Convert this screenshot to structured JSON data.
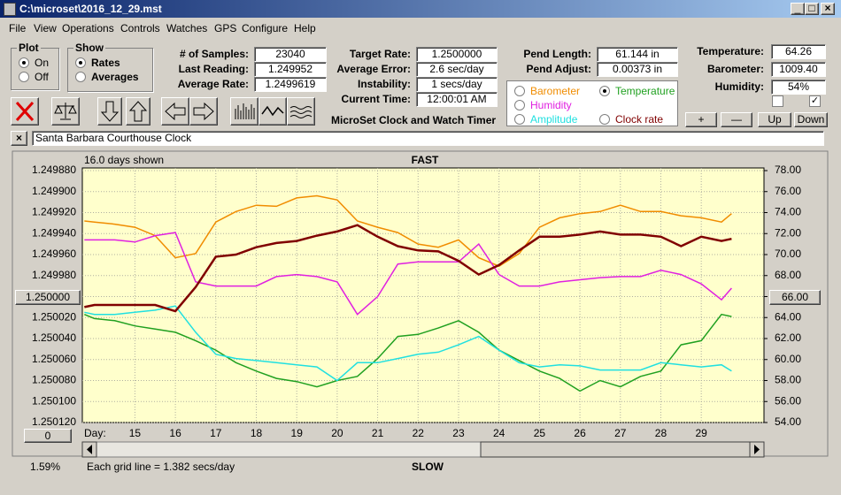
{
  "window": {
    "title": "C:\\microset\\2016_12_29.mst",
    "menu": [
      "File",
      "View",
      "Operations",
      "Controls",
      "Watches",
      "GPS",
      "Configure",
      "Help"
    ]
  },
  "controls": {
    "plot": {
      "title": "Plot",
      "options": [
        "On",
        "Off"
      ]
    },
    "show": {
      "title": "Show",
      "options": [
        "Rates",
        "Averages"
      ]
    },
    "fields": [
      {
        "label": "# of Samples:",
        "value": "23040"
      },
      {
        "label": "Last Reading:",
        "value": "1.249952"
      },
      {
        "label": "Average Rate:",
        "value": "1.2499619"
      },
      {
        "label": "Target Rate:",
        "value": "1.2500000"
      },
      {
        "label": "Average Error:",
        "value": "2.6 sec/day"
      },
      {
        "label": "Instability:",
        "value": "1 secs/day"
      },
      {
        "label": "Current Time:",
        "value": "12:00:01 AM"
      },
      {
        "label": "Pend Length:",
        "value": "61.144 in"
      },
      {
        "label": "Pend Adjust:",
        "value": "0.00373 in"
      },
      {
        "label": "Temperature:",
        "value": "64.26"
      },
      {
        "label": "Barometer:",
        "value": "1009.40"
      },
      {
        "label": "Humidity:",
        "value": "54%"
      }
    ],
    "app_title": "MicroSet Clock and Watch Timer",
    "buttons": [
      "+",
      "—",
      "Up",
      "Down"
    ],
    "description": "Santa Barbara Courthouse Clock"
  },
  "chart_data": {
    "type": "line",
    "days_shown": "16.0 days shown",
    "top_label": "FAST",
    "bottom_label": "SLOW",
    "x_label": "Day:",
    "grid_note": "Each grid line = 1.382 secs/day",
    "status": "1.59%",
    "zero_button": "0",
    "x": [
      13.75,
      14,
      14.5,
      15,
      15.5,
      16,
      16.5,
      17,
      17.5,
      18,
      18.5,
      19,
      19.5,
      20,
      20.5,
      21,
      21.5,
      22,
      22.5,
      23,
      23.5,
      24,
      24.5,
      25,
      25.5,
      26,
      26.5,
      27,
      27.5,
      28,
      28.5,
      29,
      29.5,
      29.75
    ],
    "xlim": [
      13.7,
      30.55
    ],
    "xticks": [
      15,
      16,
      17,
      18,
      19,
      20,
      21,
      22,
      23,
      24,
      25,
      26,
      27,
      28,
      29
    ],
    "ylim": [
      1.24988,
      1.25012
    ],
    "invert_y": true,
    "yticks": [
      {
        "value": 1.24988,
        "label": "1.249880"
      },
      {
        "value": 1.2499,
        "label": "1.249900"
      },
      {
        "value": 1.24992,
        "label": "1.249920"
      },
      {
        "value": 1.24994,
        "label": "1.249940"
      },
      {
        "value": 1.24996,
        "label": "1.249960"
      },
      {
        "value": 1.24998,
        "label": "1.249980"
      },
      {
        "value": 1.25,
        "label": "1.250000"
      },
      {
        "value": 1.25002,
        "label": "1.250020"
      },
      {
        "value": 1.25004,
        "label": "1.250040"
      },
      {
        "value": 1.25006,
        "label": "1.250060"
      },
      {
        "value": 1.25008,
        "label": "1.250080"
      },
      {
        "value": 1.2501,
        "label": "1.250100"
      },
      {
        "value": 1.25012,
        "label": "1.250120"
      }
    ],
    "y2lim": [
      54,
      78
    ],
    "y2ticks": [
      {
        "value": 78,
        "label": "78.00"
      },
      {
        "value": 76,
        "label": "76.00"
      },
      {
        "value": 74,
        "label": "74.00"
      },
      {
        "value": 72,
        "label": "72.00"
      },
      {
        "value": 70,
        "label": "70.00"
      },
      {
        "value": 68,
        "label": "68.00"
      },
      {
        "value": 66,
        "label": "66.00"
      },
      {
        "value": 64,
        "label": "64.00"
      },
      {
        "value": 62,
        "label": "62.00"
      },
      {
        "value": 60,
        "label": "60.00"
      },
      {
        "value": 58,
        "label": "58.00"
      },
      {
        "value": 56,
        "label": "56.00"
      },
      {
        "value": 54,
        "label": "54.00"
      }
    ],
    "grid": true,
    "background": "#ffffcc",
    "series": [
      {
        "name": "Barometer",
        "color": "#f08c00",
        "axis": "y2",
        "values": [
          73.2,
          73.1,
          72.9,
          72.6,
          71.8,
          69.7,
          70.1,
          73.1,
          74.1,
          74.7,
          74.6,
          75.4,
          75.6,
          75.2,
          73.2,
          72.6,
          72.1,
          71.0,
          70.7,
          71.4,
          69.7,
          68.9,
          70.1,
          72.6,
          73.5,
          73.9,
          74.1,
          74.7,
          74.1,
          74.1,
          73.7,
          73.5,
          73.1,
          73.9
        ]
      },
      {
        "name": "Temperature",
        "color": "#20a020",
        "axis": "y2",
        "checked": true,
        "values": [
          64.3,
          63.9,
          63.7,
          63.2,
          62.9,
          62.6,
          61.8,
          60.9,
          59.7,
          58.9,
          58.2,
          57.9,
          57.4,
          58.0,
          58.4,
          60.1,
          62.2,
          62.4,
          63.0,
          63.7,
          62.6,
          60.9,
          59.9,
          58.9,
          58.2,
          57.0,
          58.0,
          57.4,
          58.4,
          58.9,
          61.4,
          61.8,
          64.3,
          64.1
        ]
      },
      {
        "name": "Humidity",
        "color": "#e020e0",
        "axis": "y2",
        "values": [
          71.4,
          71.4,
          71.4,
          71.2,
          71.8,
          72.1,
          67.4,
          67.0,
          67.0,
          67.0,
          67.9,
          68.1,
          67.9,
          67.4,
          64.3,
          66.0,
          69.1,
          69.3,
          69.3,
          69.3,
          71.0,
          68.1,
          67.0,
          67.0,
          67.4,
          67.6,
          67.8,
          67.9,
          67.9,
          68.5,
          68.1,
          67.2,
          65.7,
          66.8
        ]
      },
      {
        "name": "Amplitude",
        "color": "#20e0e0",
        "axis": "y2",
        "values": [
          64.5,
          64.3,
          64.3,
          64.5,
          64.7,
          65.1,
          62.6,
          60.5,
          60.1,
          59.9,
          59.7,
          59.5,
          59.3,
          58.0,
          59.7,
          59.7,
          60.1,
          60.5,
          60.7,
          61.4,
          62.2,
          60.9,
          59.7,
          59.3,
          59.5,
          59.4,
          59.0,
          59.0,
          59.0,
          59.7,
          59.5,
          59.3,
          59.5,
          58.9
        ]
      },
      {
        "name": "Clock rate",
        "color": "#800000",
        "axis": "y",
        "values": [
          1.25001,
          1.250008,
          1.250008,
          1.250008,
          1.250008,
          1.250014,
          1.249991,
          1.249962,
          1.24996,
          1.249953,
          1.249949,
          1.249947,
          1.249942,
          1.249938,
          1.249932,
          1.249943,
          1.249952,
          1.249956,
          1.249957,
          1.249966,
          1.249979,
          1.24997,
          1.249956,
          1.249943,
          1.249943,
          1.249941,
          1.249938,
          1.249941,
          1.249941,
          1.249943,
          1.249952,
          1.249943,
          1.249947,
          1.249945
        ]
      }
    ]
  }
}
